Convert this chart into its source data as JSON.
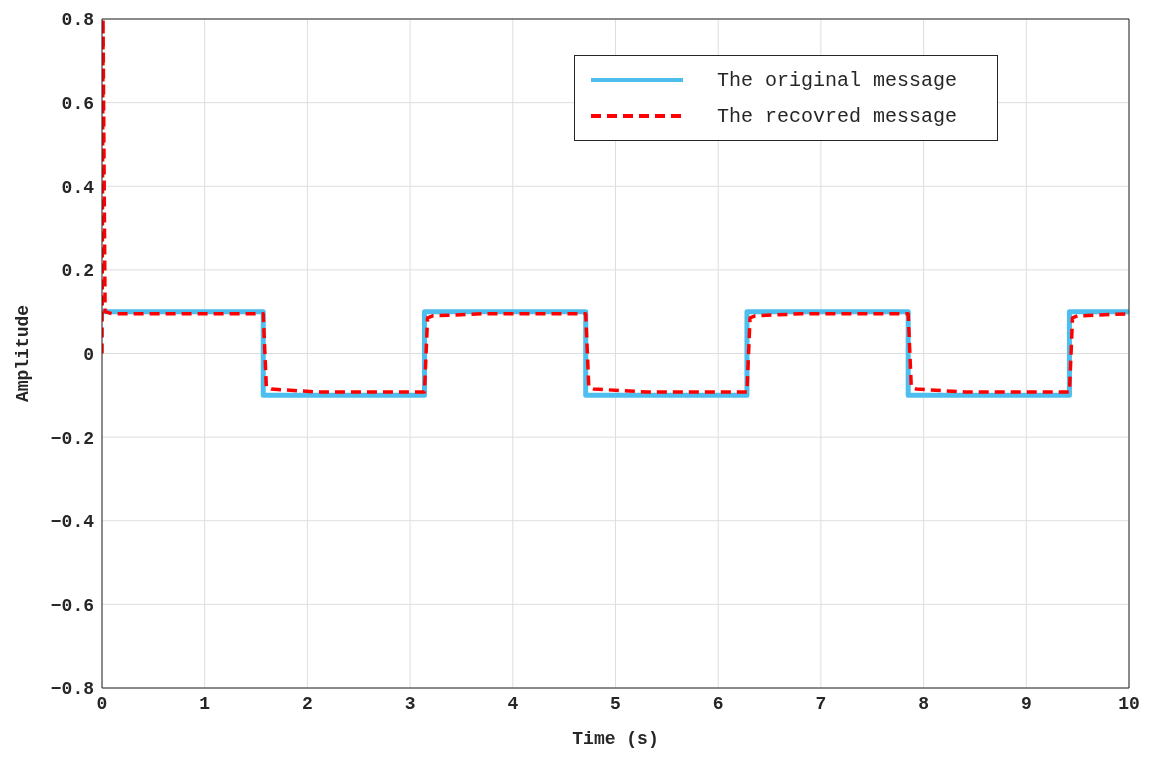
{
  "chart_data": {
    "type": "line",
    "xlabel": "Time (s)",
    "ylabel": "Amplitude",
    "xlim": [
      0,
      10
    ],
    "xticks": [
      0,
      1,
      2,
      3,
      4,
      5,
      6,
      7,
      8,
      9,
      10
    ],
    "ylim": [
      -0.8,
      0.8
    ],
    "yticks": [
      {
        "value": -0.8,
        "label": "−0.8"
      },
      {
        "value": -0.6,
        "label": "−0.6"
      },
      {
        "value": -0.4,
        "label": "−0.4"
      },
      {
        "value": -0.2,
        "label": "−0.2"
      },
      0,
      0.2,
      0.4,
      0.6,
      0.8
    ],
    "grid": true,
    "legend": "top right",
    "series": [
      {
        "name": "The original message",
        "color": "#4dbeee",
        "line_style": "solid",
        "x": [
          0,
          1.57,
          1.57,
          3.14,
          3.14,
          4.71,
          4.71,
          6.28,
          6.28,
          7.85,
          7.85,
          9.42,
          9.42,
          10
        ],
        "values": [
          0.1,
          0.1,
          -0.1,
          -0.1,
          0.1,
          0.1,
          -0.1,
          -0.1,
          0.1,
          0.1,
          -0.1,
          -0.1,
          0.1,
          0.1
        ]
      },
      {
        "name": "The recovred message",
        "color": "#ff0000",
        "line_style": "dashed",
        "x": [
          0,
          0.01,
          0.03,
          0.1,
          1.57,
          1.6,
          1.65,
          2.1,
          3.14,
          3.17,
          3.22,
          3.7,
          4.71,
          4.74,
          4.79,
          5.3,
          6.28,
          6.31,
          6.36,
          6.8,
          7.85,
          7.88,
          7.93,
          8.4,
          9.42,
          9.45,
          9.5,
          10
        ],
        "values": [
          0,
          0.8,
          0.1,
          0.095,
          0.095,
          -0.08,
          -0.085,
          -0.092,
          -0.092,
          0.085,
          0.09,
          0.095,
          0.095,
          -0.08,
          -0.085,
          -0.092,
          -0.092,
          0.085,
          0.09,
          0.095,
          0.095,
          -0.08,
          -0.085,
          -0.092,
          -0.092,
          0.085,
          0.09,
          0.095
        ]
      }
    ]
  }
}
